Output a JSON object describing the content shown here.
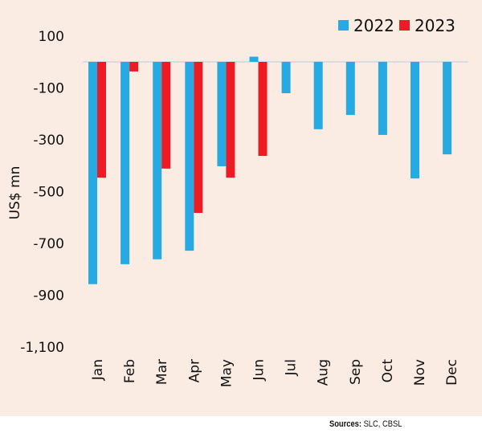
{
  "chart_data": {
    "type": "bar",
    "title": "",
    "xlabel": "",
    "ylabel": "US$ mn",
    "ylim": [
      -1100,
      100
    ],
    "yticks": [
      100,
      -100,
      -300,
      -500,
      -700,
      -900,
      -1100
    ],
    "ytick_labels": [
      "100",
      "-100",
      "-300",
      "-500",
      "-700",
      "-900",
      "-1,100"
    ],
    "categories": [
      "Jan",
      "Feb",
      "Mar",
      "Apr",
      "May",
      "Jun",
      "Jul",
      "Aug",
      "Sep",
      "Oct",
      "Nov",
      "Dec"
    ],
    "series": [
      {
        "name": "2022",
        "color": "#27aae1",
        "values": [
          -858,
          -781,
          -762,
          -729,
          -403,
          20,
          -121,
          -260,
          -205,
          -282,
          -450,
          -357
        ]
      },
      {
        "name": "2023",
        "color": "#ed1c24",
        "values": [
          -447,
          -37,
          -412,
          -583,
          -447,
          -363,
          null,
          null,
          null,
          null,
          null,
          null
        ]
      }
    ],
    "legend": {
      "position": "top-right",
      "entries": [
        "2022",
        "2023"
      ]
    },
    "grid": false,
    "zero_line": true
  },
  "source": {
    "label": "Sources:",
    "text": " SLC, CBSL"
  },
  "colors": {
    "background": "#faece3",
    "zero_line": "#cfd8de"
  }
}
